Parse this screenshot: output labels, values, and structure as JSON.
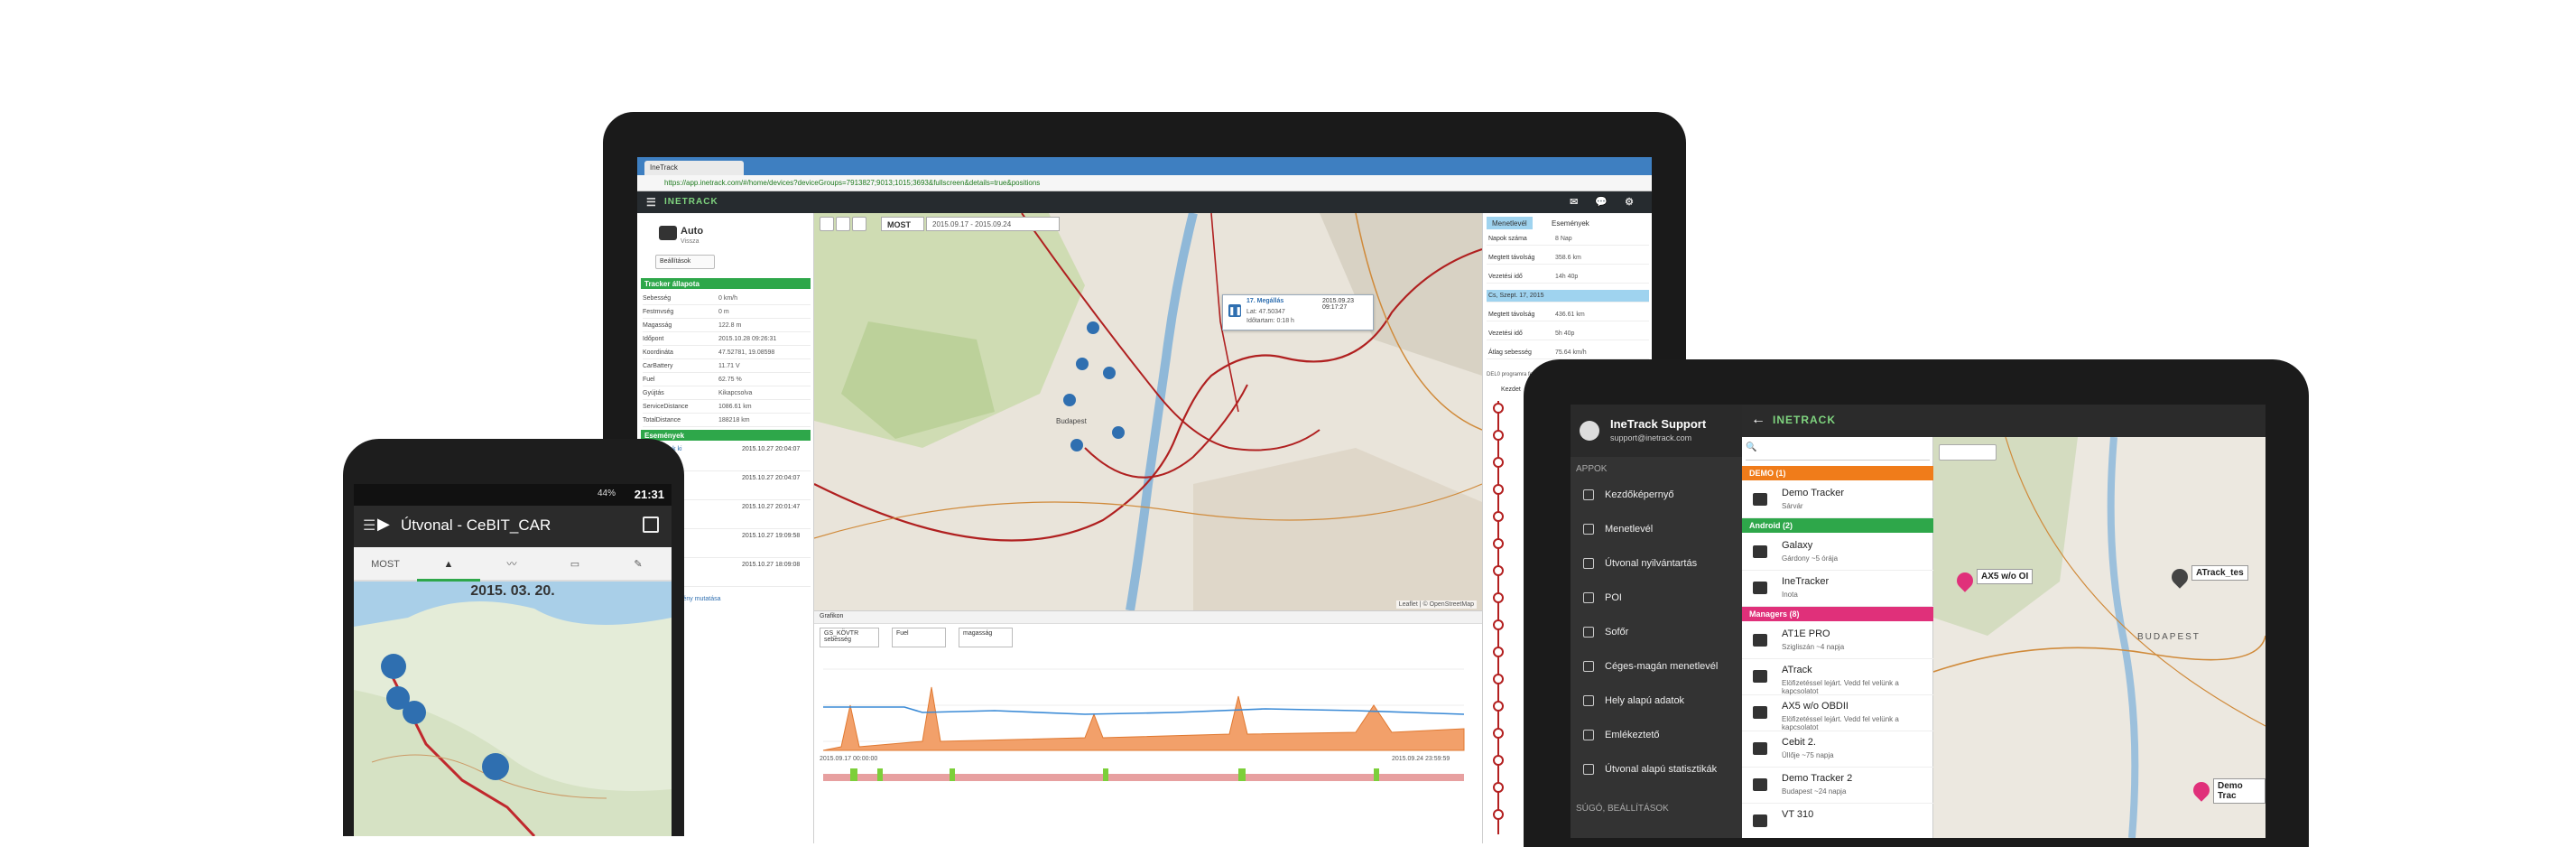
{
  "laptop": {
    "browser_tab": "IneTrack",
    "url": "https://app.inetrack.com/#/home/devices?deviceGroups=7913827;9013;1015;3693&fullscreen&details=true&positions",
    "logo": "INETRACK",
    "device": {
      "name": "Auto",
      "status": "Vissza",
      "button": "Beállítások"
    },
    "tracker_section": "Tracker állapota",
    "tracker_rows": [
      {
        "k": "Sebesség",
        "v": "0 km/h"
      },
      {
        "k": "Festmvség",
        "v": "0 m"
      },
      {
        "k": "Magasság",
        "v": "122.8 m"
      },
      {
        "k": "Időpont",
        "v": "2015.10.28 09:26:31"
      },
      {
        "k": "Koordináta",
        "v": "47.52781, 19.08598"
      },
      {
        "k": "CarBattery",
        "v": "11.71 V"
      },
      {
        "k": "Fuel",
        "v": "62.75 %"
      },
      {
        "k": "Gyújtás",
        "v": "Kikapcsolva"
      },
      {
        "k": "ServiceDistance",
        "v": "1086.61 km"
      },
      {
        "k": "TotalDistance",
        "v": "188218 km"
      }
    ],
    "events_section": "Események",
    "events": [
      {
        "a": "Események ki",
        "t": "2015.10.27 20:04:07"
      },
      {
        "a": "Események ki",
        "t": "2015.10.27 20:04:07"
      },
      {
        "a": "Események ki",
        "t": "2015.10.27 20:01:47"
      },
      {
        "a": "Események ki",
        "t": "2015.10.27 19:09:58"
      },
      {
        "a": "Események ki",
        "t": "2015.10.27 18:09:08"
      }
    ],
    "events_footer": "A többi esemény mutatása",
    "map": {
      "now_label": "MOST",
      "range": "2015.09.17 - 2015.09.24",
      "popup_title": "17. Megállás",
      "popup_date": "2015.09.23 09:17:27",
      "popup_lat": "Lat: 47.50347",
      "popup_lng": "Lng: 19.07468",
      "popup_dur": "Időtartam: 0:18 h",
      "attribution": "Leaflet | © OpenStreetMap",
      "city": "Budapest"
    },
    "right_tabs": [
      "Menetlevél",
      "Események"
    ],
    "right_rows": [
      {
        "k": "Napok száma",
        "v": "8 Nap"
      },
      {
        "k": "Megtett távolság",
        "v": "358.6 km"
      },
      {
        "k": "Vezetési idő",
        "v": "14h 40p"
      },
      {
        "k": "Cs, Szept. 17, 2015",
        "v": "",
        "hl": true
      },
      {
        "k": "Megtett távolság",
        "v": "436.61 km"
      },
      {
        "k": "Vezetési idő",
        "v": "5h 40p"
      },
      {
        "k": "Átlag sebesség",
        "v": "75.64 km/h"
      }
    ],
    "right_note": "DEL0 programra fejlesztve, Tvátor forum: 186 km",
    "right_note2": "Kezdet",
    "chart": {
      "title": "Grafikon",
      "legends": [
        "GS_KÖVTR sebesség",
        "Fuel",
        "magasság"
      ],
      "x_start": "2015.09.17 00:00:00",
      "x_end": "2015.09.24 23:59:59"
    }
  },
  "phone": {
    "time": "21:31",
    "battery": "44%",
    "title": "Útvonal - CeBIT_CAR",
    "tab_now": "MOST",
    "date": "2015. 03. 20."
  },
  "tablet": {
    "user_name": "IneTrack Support",
    "user_mail": "support@inetrack.com",
    "apps_label": "APPOK",
    "menu": [
      "Kezdőképernyő",
      "Menetlevél",
      "Útvonal nyilvántartás",
      "POI",
      "Sofőr",
      "Céges-magán menetlevél",
      "Hely alapú adatok",
      "Emlékeztető",
      "Útvonal alapú statisztikák"
    ],
    "help_label": "SÚGÓ, BEÁLLÍTÁSOK",
    "logo": "INETRACK",
    "groups": [
      {
        "name": "DEMO (1)",
        "color": "#f07c1a",
        "devices": [
          {
            "name": "Demo Tracker",
            "status": "Sárvár"
          }
        ]
      },
      {
        "name": "Android (2)",
        "color": "#2ea74a",
        "devices": [
          {
            "name": "Galaxy",
            "status": "Gárdony ~5 órája"
          },
          {
            "name": "IneTracker",
            "status": "Inota"
          }
        ]
      },
      {
        "name": "Managers (8)",
        "color": "#e0307a",
        "devices": [
          {
            "name": "AT1E PRO",
            "status": "Szigliszán ~4 napja"
          },
          {
            "name": "ATrack",
            "status": "Elöfizetéssel lejárt. Vedd fel velünk a kapcsolatot"
          },
          {
            "name": "AX5 w/o OBDII",
            "status": "Elöfizetéssel lejárt. Vedd fel velünk a kapcsolatot"
          },
          {
            "name": "Cebit 2.",
            "status": "Üllője ~75 napja"
          },
          {
            "name": "Demo Tracker 2",
            "status": "Budapest ~24 napja"
          },
          {
            "name": "VT 310",
            "status": ""
          }
        ]
      }
    ],
    "map_labels": [
      "AX5 w/o OI",
      "ATrack_tes",
      "Demo Trac"
    ],
    "map_city": "BUDAPEST"
  }
}
